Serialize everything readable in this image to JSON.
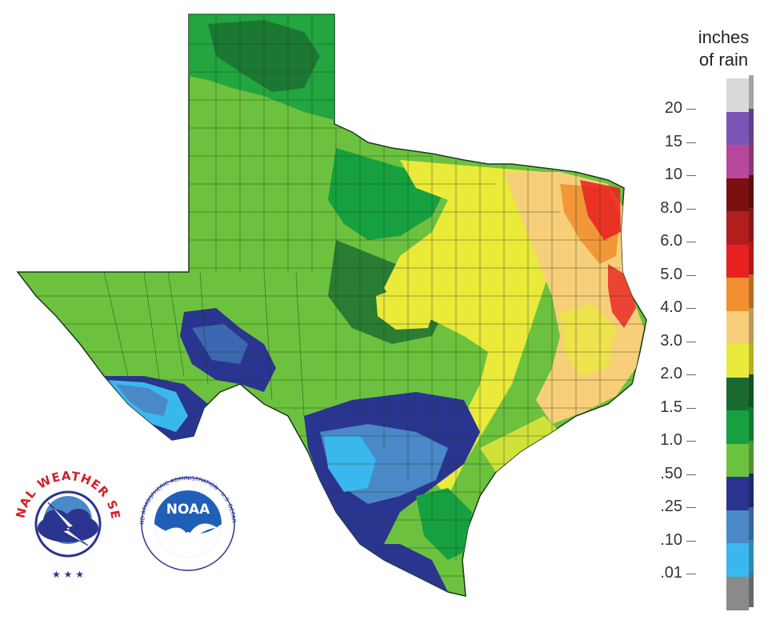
{
  "legend": {
    "title_line1": "inches",
    "title_line2": "of rain",
    "items": [
      {
        "label": "20",
        "color": "#d9d9d9"
      },
      {
        "label": "15",
        "color": "#7a55b5"
      },
      {
        "label": "10",
        "color": "#b8489c"
      },
      {
        "label": "8.0",
        "color": "#7a1010"
      },
      {
        "label": "6.0",
        "color": "#b01e1e"
      },
      {
        "label": "5.0",
        "color": "#e82020"
      },
      {
        "label": "4.0",
        "color": "#f09030"
      },
      {
        "label": "3.0",
        "color": "#f7cf78"
      },
      {
        "label": "2.0",
        "color": "#eaea3a"
      },
      {
        "label": "1.5",
        "color": "#1a6a30"
      },
      {
        "label": "1.0",
        "color": "#16a040"
      },
      {
        "label": ".50",
        "color": "#6cc23e"
      },
      {
        "label": ".25",
        "color": "#2a3590"
      },
      {
        "label": ".10",
        "color": "#4a88c8"
      },
      {
        "label": ".01",
        "color": "#3ab8ee"
      },
      {
        "label": "",
        "color": "#8a8a8a"
      }
    ]
  },
  "logos": {
    "nws": {
      "ring_text": "NATIONAL WEATHER SERVICE",
      "stars": "★ ★ ★"
    },
    "noaa": {
      "center_text": "NOAA",
      "ring_text": "NATIONAL OCEANIC AND ATMOSPHERIC ADMINISTRATION · U.S. DEPARTMENT OF COMMERCE"
    }
  },
  "colors": {
    "dry_green": "#6cc23e",
    "mid_green": "#16a040",
    "dark_green": "#1a6a30",
    "yellow": "#eaea3a",
    "tan": "#f7cf78",
    "orange": "#f09030",
    "red": "#e82020",
    "navy": "#2a3590",
    "steel_blue": "#4a88c8",
    "light_blue": "#3ab8ee"
  }
}
